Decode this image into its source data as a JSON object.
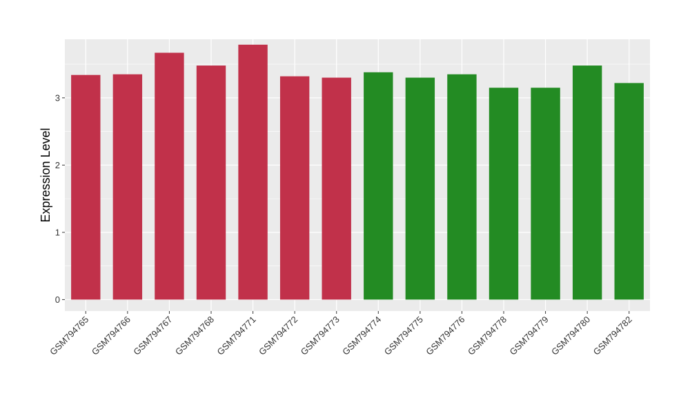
{
  "chart_data": {
    "type": "bar",
    "title": "",
    "xlabel": "",
    "ylabel": "Expression Level",
    "ylim": [
      -0.17,
      3.87
    ],
    "yticks": [
      0,
      1,
      2,
      3
    ],
    "grid": true,
    "legend": "none",
    "categories": [
      "GSM794765",
      "GSM794766",
      "GSM794767",
      "GSM794768",
      "GSM794771",
      "GSM794772",
      "GSM794773",
      "GSM794774",
      "GSM794775",
      "GSM794776",
      "GSM794778",
      "GSM794779",
      "GSM794780",
      "GSM794782"
    ],
    "values": [
      3.34,
      3.35,
      3.67,
      3.48,
      3.79,
      3.32,
      3.3,
      3.38,
      3.3,
      3.35,
      3.15,
      3.15,
      3.48,
      3.22
    ],
    "bar_colors": [
      "#c1314a",
      "#c1314a",
      "#c1314a",
      "#c1314a",
      "#c1314a",
      "#c1314a",
      "#c1314a",
      "#238b23",
      "#238b23",
      "#238b23",
      "#238b23",
      "#238b23",
      "#238b23",
      "#238b23"
    ],
    "panel_background": "#ebebeb",
    "grid_color": "#ffffff"
  }
}
